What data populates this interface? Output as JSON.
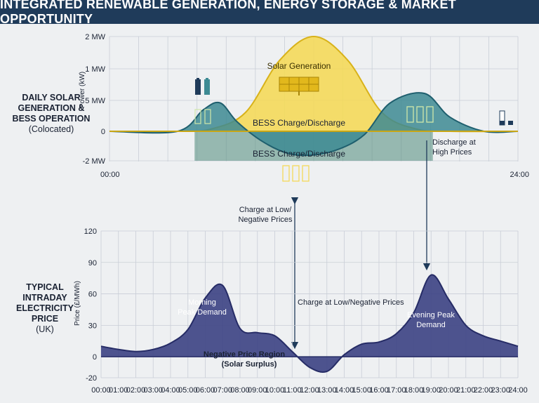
{
  "header": {
    "title": "INTEGRATED RENEWABLE GENERATION, ENERGY STORAGE & MARKET OPPORTUNITY"
  },
  "top_panel": {
    "side_label_line1": "DAILY SOLAR",
    "side_label_line2": "GENERATION &",
    "side_label_line3": "BESS OPERATION",
    "side_label_sub": "(Colocated)",
    "solar_label": "Solar Generation",
    "bess_label_top": "BESS Charge/Discharge",
    "bess_label_bottom": "BESS Charge/Discharge",
    "discharge_note_line1": "Discharge at",
    "discharge_note_line2": "High Prices",
    "charge_note_line1": "Charge at Low/",
    "charge_note_line2": "Negative Prices"
  },
  "bottom_panel": {
    "side_label_line1": "TYPICAL",
    "side_label_line2": "INTRADAY",
    "side_label_line3": "ELECTRICITY",
    "side_label_line4": "PRICE",
    "side_label_sub": "(UK)",
    "morning_line1": "Morning",
    "morning_line2": "Peak Demand",
    "evening_line1": "Evening Peak",
    "evening_line2": "Demand",
    "charge_note": "Charge at Low/Negative Prices",
    "negative_line1": "Negative Price Region",
    "negative_line2": "(Solar Surplus)"
  },
  "colors": {
    "header_bg": "#1f3b5a",
    "solar_fill": "#f4d95a",
    "solar_stroke": "#d8b21a",
    "bess_fill": "#3d8a93",
    "bess_stroke": "#1f5f6e",
    "price_fill": "#3f4585",
    "price_stroke": "#262c66"
  },
  "chart_data": [
    {
      "type": "area",
      "title": "",
      "xlabel": "",
      "ylabel": "Power (kW)",
      "x_tick_labels": [
        "00:00",
        "24:00"
      ],
      "y_tick_labels": [
        "2 MW",
        "1 MW",
        "5 MW",
        "0",
        "-2 MW"
      ],
      "grid": true,
      "series": [
        {
          "name": "Solar Generation",
          "x": [
            0,
            4,
            6,
            8,
            10,
            12,
            14,
            16,
            18,
            20,
            24
          ],
          "values": [
            0,
            0,
            0.05,
            0.4,
            1.5,
            2.0,
            1.5,
            0.4,
            0.05,
            0,
            0
          ]
        },
        {
          "name": "BESS Charge/Discharge",
          "x": [
            0,
            4,
            5.5,
            6.5,
            7.5,
            9,
            10.5,
            12,
            13.5,
            15,
            16.5,
            18.5,
            20,
            22,
            24
          ],
          "values": [
            0,
            0,
            0.45,
            0.6,
            0.2,
            -0.7,
            -1.5,
            -1.6,
            -1.2,
            -0.2,
            0.6,
            0.8,
            0.3,
            0,
            0
          ]
        }
      ]
    },
    {
      "type": "area",
      "title": "",
      "xlabel": "",
      "ylabel": "Price (£/MWh)",
      "x": [
        "00:00",
        "01:00",
        "02:00",
        "03:00",
        "04:00",
        "05:00",
        "06:00",
        "07:00",
        "08:00",
        "09:00",
        "10:00",
        "11:00",
        "12:00",
        "13:00",
        "14:00",
        "15:00",
        "16:00",
        "17:00",
        "18:00",
        "19:00",
        "20:00",
        "21:00",
        "22:00",
        "23:00",
        "24:00"
      ],
      "series": [
        {
          "name": "",
          "values": [
            10,
            7,
            5,
            7,
            13,
            26,
            56,
            68,
            27,
            23,
            20,
            5,
            -10,
            -14,
            2,
            12,
            14,
            22,
            42,
            78,
            55,
            30,
            20,
            15,
            10
          ]
        }
      ],
      "y_ticks": [
        -20,
        0,
        30,
        60,
        90,
        120
      ],
      "ylim": [
        -20,
        120
      ],
      "grid": true
    }
  ]
}
